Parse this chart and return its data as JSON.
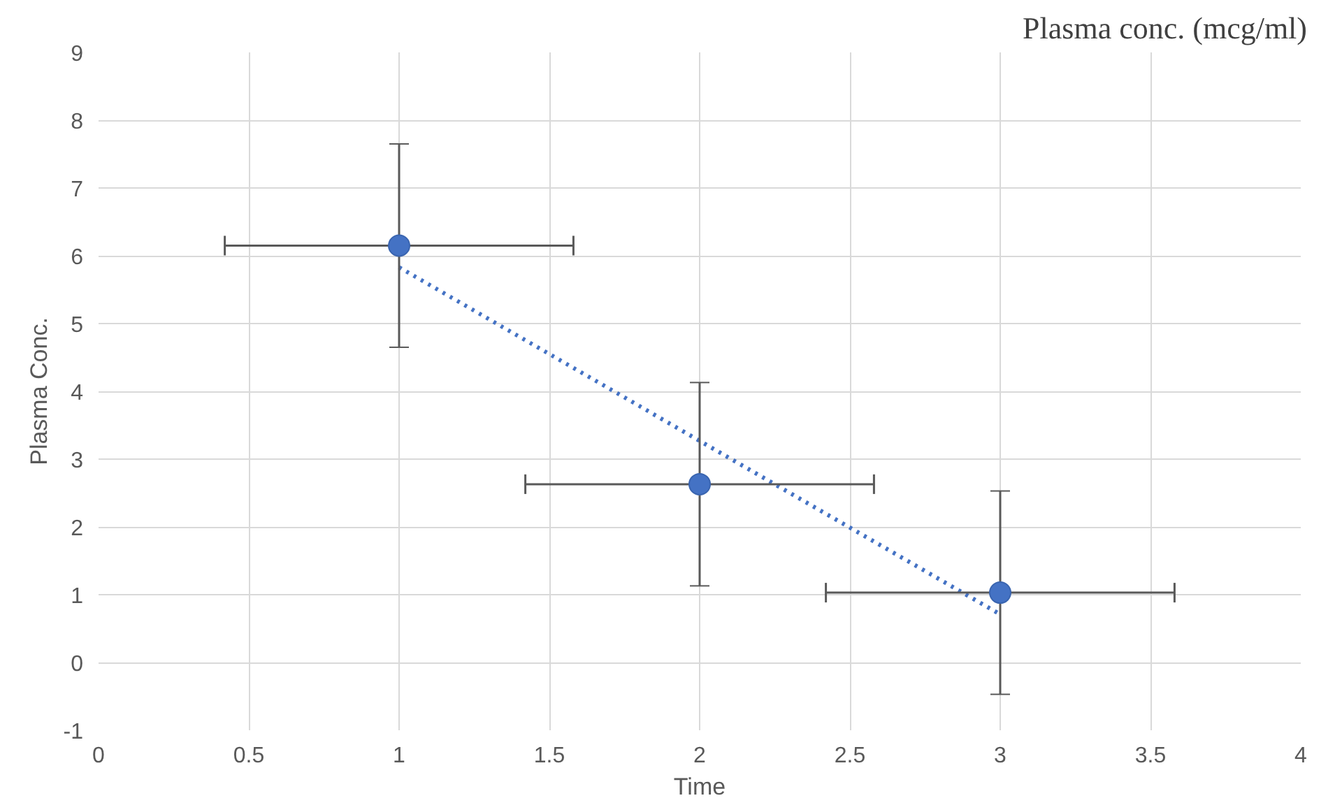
{
  "chart_data": {
    "type": "scatter",
    "title": "Plasma conc.  (mcg/ml)",
    "xlabel": "Time",
    "ylabel": "Plasma Conc.",
    "xlim": [
      0,
      4
    ],
    "xticks": [
      0,
      0.5,
      1,
      1.5,
      2,
      2.5,
      3,
      3.5,
      4
    ],
    "ylim": [
      -1,
      9
    ],
    "yticks": [
      -1,
      0,
      1,
      2,
      3,
      4,
      5,
      6,
      7,
      8,
      9
    ],
    "grid": true,
    "series": [
      {
        "color": "#4472c4",
        "marker": "circle",
        "x": [
          1,
          2,
          3
        ],
        "values": [
          6.15,
          2.63,
          1.03
        ],
        "errors": [
          1.5,
          1.5,
          1.5
        ],
        "xerrors": [
          0.58,
          0.58,
          0.58
        ]
      },
      {
        "type": "line",
        "color": "#4472c4",
        "line_style": "dotted",
        "x": [
          1,
          3
        ],
        "values": [
          5.83,
          0.71
        ]
      }
    ]
  }
}
